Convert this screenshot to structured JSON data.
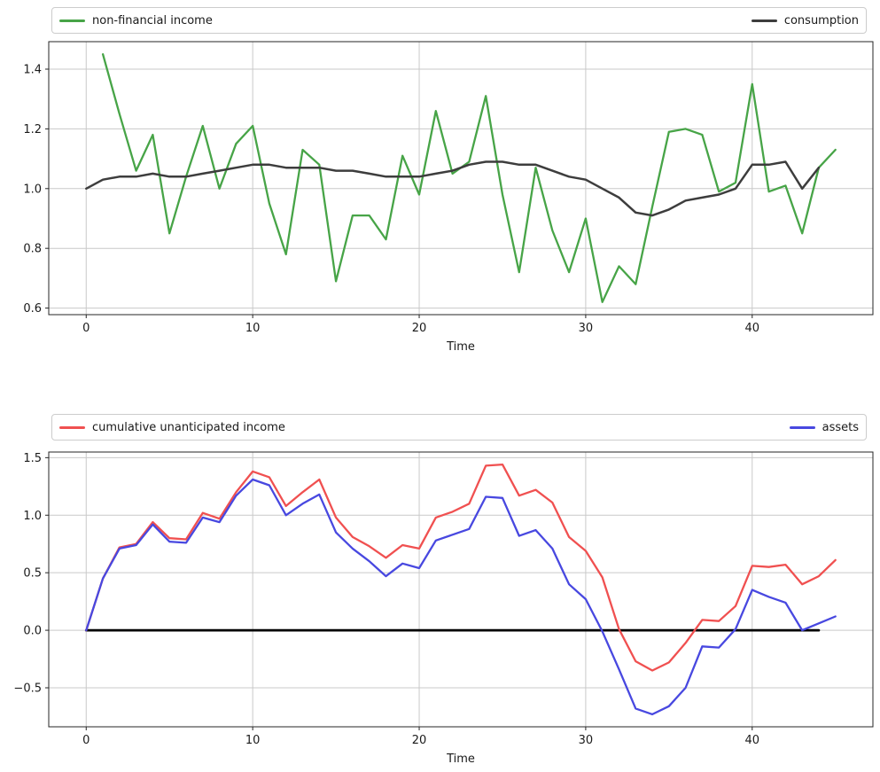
{
  "figure": {
    "background": "#ffffff",
    "grid_color": "#c9c9c9",
    "spine_color": "#262626",
    "text_color": "#1a1a1a"
  },
  "chart_data": [
    {
      "type": "line",
      "title": "",
      "xlabel": "Time",
      "ylabel": "",
      "xlim": [
        -2.25,
        47.25
      ],
      "ylim": [
        0.578,
        1.492
      ],
      "xticks": [
        0,
        10,
        20,
        30,
        40
      ],
      "yticks": [
        0.6,
        0.8,
        1.0,
        1.2,
        1.4
      ],
      "grid": true,
      "legend_position": "top-expanded",
      "legend": [
        {
          "label": "non-financial income",
          "color": "#47a447"
        },
        {
          "label": "consumption",
          "color": "#3d3d3d"
        }
      ],
      "series": [
        {
          "name": "non-financial income",
          "color": "#47a447",
          "width": 2.3,
          "x_start": 1,
          "values": [
            1.45,
            1.25,
            1.06,
            1.18,
            0.85,
            1.04,
            1.21,
            1.0,
            1.15,
            1.21,
            0.95,
            0.78,
            1.13,
            1.08,
            0.69,
            0.91,
            0.91,
            0.83,
            1.11,
            0.98,
            1.26,
            1.05,
            1.09,
            1.31,
            0.98,
            0.72,
            1.07,
            0.86,
            0.72,
            0.9,
            0.62,
            0.74,
            0.68,
            0.94,
            1.19,
            1.2,
            1.18,
            0.99,
            1.02,
            1.35,
            0.99,
            1.01,
            0.85,
            1.07,
            1.13
          ]
        },
        {
          "name": "consumption",
          "color": "#3d3d3d",
          "width": 2.5,
          "x_start": 0,
          "values": [
            1.0,
            1.03,
            1.04,
            1.04,
            1.05,
            1.04,
            1.04,
            1.05,
            1.06,
            1.07,
            1.08,
            1.08,
            1.07,
            1.07,
            1.07,
            1.06,
            1.06,
            1.05,
            1.04,
            1.04,
            1.04,
            1.05,
            1.06,
            1.08,
            1.09,
            1.09,
            1.08,
            1.08,
            1.06,
            1.04,
            1.03,
            1.0,
            0.97,
            0.92,
            0.91,
            0.93,
            0.96,
            0.97,
            0.98,
            1.0,
            1.08,
            1.08,
            1.09,
            1.0,
            1.07
          ]
        }
      ]
    },
    {
      "type": "line",
      "title": "",
      "xlabel": "Time",
      "ylabel": "",
      "xlim": [
        -2.25,
        47.25
      ],
      "ylim": [
        -0.839,
        1.549
      ],
      "xticks": [
        0,
        10,
        20,
        30,
        40
      ],
      "yticks": [
        -0.5,
        0.0,
        0.5,
        1.0,
        1.5
      ],
      "grid": true,
      "legend_position": "top-expanded",
      "legend": [
        {
          "label": "cumulative unanticipated income",
          "color": "#f05050"
        },
        {
          "label": "assets",
          "color": "#4848e0"
        }
      ],
      "series": [
        {
          "name": "zero line",
          "color": "#000000",
          "width": 2.8,
          "x_start": 0,
          "x": [
            0,
            44
          ],
          "values": [
            0.0,
            0.0
          ],
          "in_legend": false
        },
        {
          "name": "cumulative unanticipated income",
          "color": "#f05050",
          "width": 2.3,
          "x_start": 0,
          "values": [
            0.0,
            0.45,
            0.72,
            0.75,
            0.94,
            0.8,
            0.79,
            1.02,
            0.97,
            1.2,
            1.38,
            1.33,
            1.08,
            1.2,
            1.31,
            0.98,
            0.81,
            0.73,
            0.63,
            0.74,
            0.71,
            0.98,
            1.03,
            1.1,
            1.43,
            1.44,
            1.17,
            1.22,
            1.11,
            0.81,
            0.69,
            0.46,
            0.01,
            -0.27,
            -0.35,
            -0.28,
            -0.11,
            0.09,
            0.08,
            0.21,
            0.56,
            0.55,
            0.57,
            0.4,
            0.47,
            0.61
          ]
        },
        {
          "name": "assets",
          "color": "#4848e0",
          "width": 2.3,
          "x_start": 0,
          "values": [
            0.0,
            0.45,
            0.71,
            0.74,
            0.92,
            0.77,
            0.76,
            0.98,
            0.94,
            1.17,
            1.31,
            1.26,
            1.0,
            1.1,
            1.18,
            0.85,
            0.71,
            0.6,
            0.47,
            0.58,
            0.54,
            0.78,
            0.83,
            0.88,
            1.16,
            1.15,
            0.82,
            0.87,
            0.71,
            0.4,
            0.27,
            -0.01,
            -0.34,
            -0.68,
            -0.73,
            -0.66,
            -0.5,
            -0.14,
            -0.15,
            0.01,
            0.35,
            0.29,
            0.24,
            0.0,
            0.06,
            0.12
          ]
        }
      ]
    }
  ]
}
